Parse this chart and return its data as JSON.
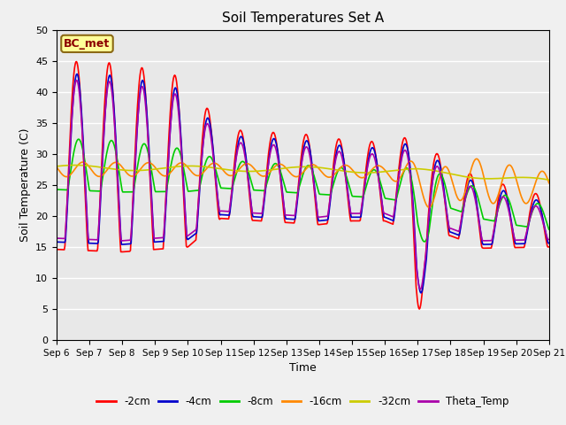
{
  "title": "Soil Temperatures Set A",
  "xlabel": "Time",
  "ylabel": "Soil Temperature (C)",
  "ylim": [
    0,
    50
  ],
  "yticks": [
    0,
    5,
    10,
    15,
    20,
    25,
    30,
    35,
    40,
    45,
    50
  ],
  "annotation": "BC_met",
  "fig_facecolor": "#f0f0f0",
  "ax_facecolor": "#e8e8e8",
  "grid_color": "#ffffff",
  "series": {
    "-2cm": {
      "color": "#ff0000",
      "lw": 1.2
    },
    "-4cm": {
      "color": "#0000cc",
      "lw": 1.2
    },
    "-8cm": {
      "color": "#00cc00",
      "lw": 1.2
    },
    "-16cm": {
      "color": "#ff8800",
      "lw": 1.2
    },
    "-32cm": {
      "color": "#cccc00",
      "lw": 1.2
    },
    "Theta_Temp": {
      "color": "#aa00aa",
      "lw": 1.2
    }
  },
  "x_labels": [
    "Sep 6",
    "Sep 7",
    "Sep 8",
    "Sep 9",
    "Sep 10",
    "Sep 11",
    "Sep 12",
    "Sep 13",
    "Sep 14",
    "Sep 15",
    "Sep 16",
    "Sep 17",
    "Sep 18",
    "Sep 19",
    "Sep 20",
    "Sep 21"
  ]
}
